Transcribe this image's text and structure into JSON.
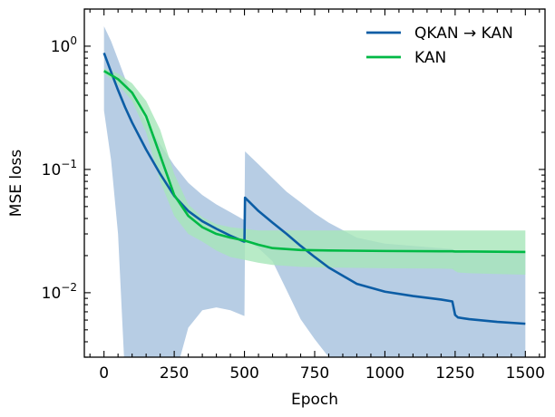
{
  "chart_data": {
    "type": "line",
    "title": "",
    "xlabel": "Epoch",
    "ylabel": "MSE loss",
    "xlim": [
      -70,
      1570
    ],
    "ylim": [
      0.003,
      2.0
    ],
    "yscale": "log",
    "xticks": [
      0,
      250,
      500,
      750,
      1000,
      1250,
      1500
    ],
    "yticks": [
      {
        "value": 0.01,
        "base": "10",
        "exp": "−2"
      },
      {
        "value": 0.1,
        "base": "10",
        "exp": "−1"
      },
      {
        "value": 1,
        "base": "10",
        "exp": "0"
      }
    ],
    "legend_position": "top-right",
    "series": [
      {
        "name": "QKAN → KAN",
        "color": "#0C5DA5",
        "band_color": "#b7cde4",
        "x": [
          0,
          25,
          50,
          75,
          100,
          150,
          200,
          250,
          300,
          350,
          400,
          450,
          498,
          500,
          502,
          550,
          600,
          650,
          700,
          750,
          800,
          900,
          1000,
          1100,
          1200,
          1240,
          1250,
          1260,
          1300,
          1400,
          1500
        ],
        "mean": [
          0.88,
          0.62,
          0.44,
          0.32,
          0.24,
          0.145,
          0.092,
          0.061,
          0.046,
          0.038,
          0.033,
          0.029,
          0.026,
          0.026,
          0.059,
          0.046,
          0.037,
          0.03,
          0.024,
          0.0195,
          0.016,
          0.0118,
          0.0102,
          0.0094,
          0.0088,
          0.0085,
          0.0066,
          0.0063,
          0.0061,
          0.0058,
          0.0056
        ],
        "upper": [
          1.45,
          1.1,
          0.78,
          0.55,
          0.4,
          0.24,
          0.16,
          0.108,
          0.078,
          0.062,
          0.052,
          0.045,
          0.039,
          0.039,
          0.14,
          0.11,
          0.085,
          0.066,
          0.054,
          0.044,
          0.037,
          0.028,
          0.025,
          0.024,
          0.023,
          0.0226,
          0.0221,
          0.022,
          0.022,
          0.0215,
          0.021
        ],
        "lower": [
          0.3,
          0.12,
          0.03,
          0.002,
          0.002,
          0.002,
          0.002,
          0.002,
          0.0052,
          0.0072,
          0.0076,
          0.0072,
          0.0065,
          0.0065,
          0.027,
          0.023,
          0.018,
          0.0105,
          0.0061,
          0.0042,
          0.003,
          0.002,
          0.002,
          0.002,
          0.002,
          0.002,
          0.002,
          0.002,
          0.002,
          0.002,
          0.002
        ]
      },
      {
        "name": "KAN",
        "color": "#00B945",
        "band_color": "#a6e6b9",
        "x": [
          0,
          50,
          100,
          150,
          200,
          250,
          300,
          350,
          400,
          450,
          500,
          550,
          600,
          700,
          800,
          1000,
          1200,
          1240,
          1250,
          1260,
          1300,
          1400,
          1500
        ],
        "mean": [
          0.63,
          0.54,
          0.42,
          0.27,
          0.13,
          0.062,
          0.042,
          0.034,
          0.03,
          0.028,
          0.0265,
          0.0245,
          0.023,
          0.0222,
          0.022,
          0.0218,
          0.0217,
          0.0217,
          0.0216,
          0.0216,
          0.0216,
          0.0215,
          0.0214
        ],
        "upper": [
          0.66,
          0.6,
          0.5,
          0.36,
          0.21,
          0.092,
          0.052,
          0.041,
          0.036,
          0.034,
          0.033,
          0.032,
          0.032,
          0.032,
          0.032,
          0.032,
          0.032,
          0.032,
          0.032,
          0.032,
          0.032,
          0.032,
          0.032
        ],
        "lower": [
          0.6,
          0.49,
          0.36,
          0.2,
          0.08,
          0.042,
          0.03,
          0.026,
          0.022,
          0.0195,
          0.0185,
          0.0175,
          0.0168,
          0.0162,
          0.016,
          0.0158,
          0.0157,
          0.0156,
          0.015,
          0.0146,
          0.0144,
          0.0142,
          0.014
        ]
      }
    ]
  }
}
